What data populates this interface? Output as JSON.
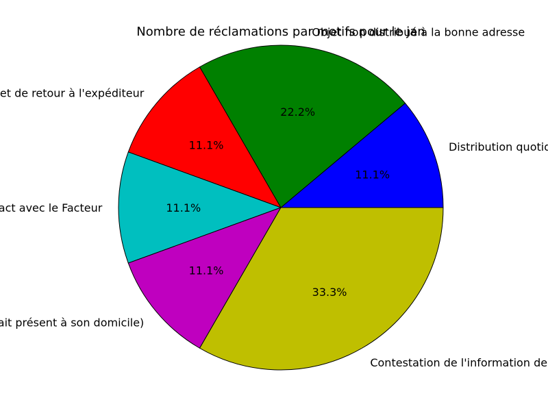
{
  "chart_data": {
    "type": "pie",
    "title": "Nombre de réclamations par motifs pour le jan",
    "slices": [
      {
        "label": "Distribution quotidienne",
        "value": 11.1,
        "pct_label": "11.1%",
        "color": "#0000ff"
      },
      {
        "label": "Objet non distribué à la bonne adresse",
        "value": 22.2,
        "pct_label": "22.2%",
        "color": "#008000"
      },
      {
        "label": "Objet de retour à l'expéditeur",
        "value": 11.1,
        "pct_label": "11.1%",
        "color": "#ff0000"
      },
      {
        "label": "Contact avec le Facteur",
        "value": 11.1,
        "pct_label": "11.1%",
        "color": "#00bfbf"
      },
      {
        "label": "Avis de passage (client était présent à son domicile)",
        "value": 11.1,
        "pct_label": "11.1%",
        "color": "#bf00bf"
      },
      {
        "label": "Contestation de l'information de distribution",
        "value": 33.3,
        "pct_label": "33.3%",
        "color": "#bfbf00"
      }
    ],
    "start_angle_deg": 0,
    "direction": "counterclockwise",
    "edge_color": "#000000"
  }
}
